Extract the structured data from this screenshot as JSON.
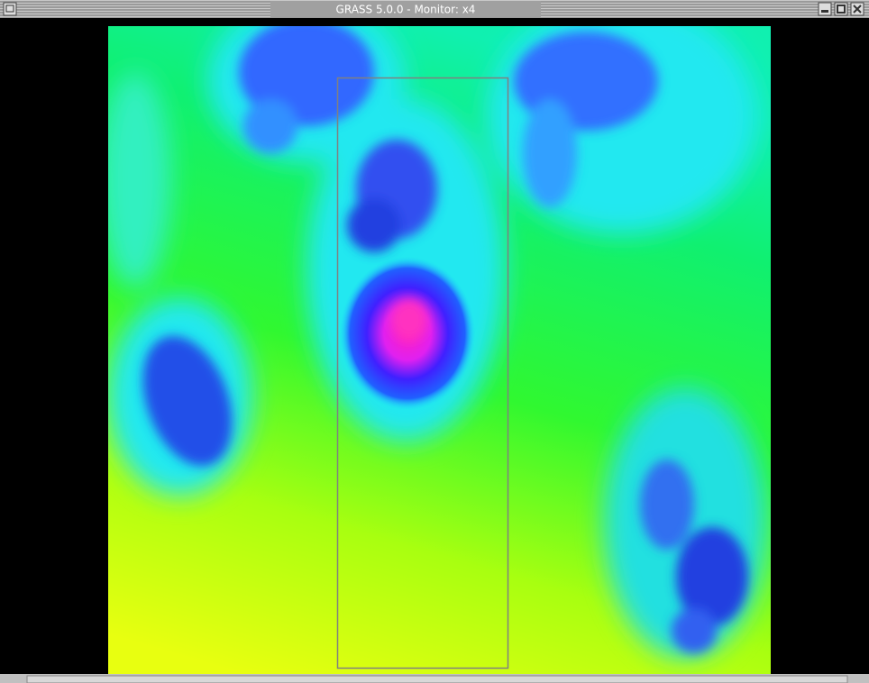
{
  "window": {
    "title": "GRASS 5.0.0 - Monitor: x4"
  }
}
